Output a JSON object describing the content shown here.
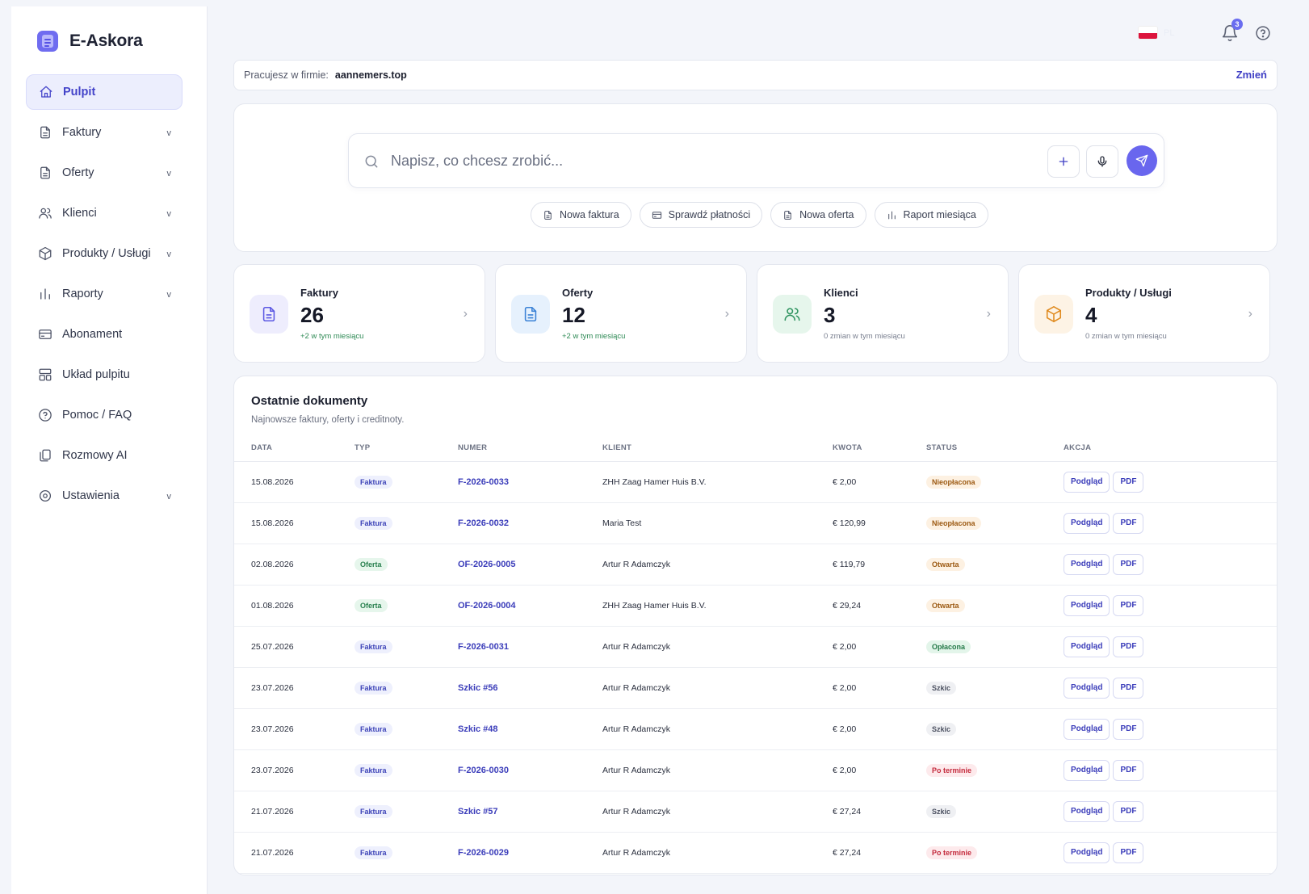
{
  "app": {
    "name": "E-Askora"
  },
  "sidebar": {
    "items": [
      {
        "label": "Pulpit",
        "icon": "home-icon",
        "active": true,
        "expandable": false
      },
      {
        "label": "Faktury",
        "icon": "document-icon",
        "expandable": true
      },
      {
        "label": "Oferty",
        "icon": "document-icon",
        "expandable": true
      },
      {
        "label": "Klienci",
        "icon": "users-icon",
        "expandable": true
      },
      {
        "label": "Produkty / Usługi",
        "icon": "box-icon",
        "expandable": true
      },
      {
        "label": "Raporty",
        "icon": "bar-chart-icon",
        "expandable": true
      },
      {
        "label": "Abonament",
        "icon": "credit-card-icon",
        "expandable": false
      },
      {
        "label": "Układ pulpitu",
        "icon": "layout-icon",
        "expandable": false
      },
      {
        "label": "Pomoc / FAQ",
        "icon": "help-circle-icon",
        "expandable": false
      },
      {
        "label": "Rozmowy AI",
        "icon": "copy-icon",
        "expandable": false
      },
      {
        "label": "Ustawienia",
        "icon": "settings-icon",
        "expandable": true
      }
    ],
    "chevron": "v"
  },
  "topbar": {
    "language": "PL",
    "notifications_count": "3",
    "flag_colors": {
      "top": "#ffffff",
      "bottom": "#dc143c"
    }
  },
  "company": {
    "label": "Pracujesz w firmie:",
    "name": "aannemers.top",
    "change_label": "Zmień"
  },
  "ai": {
    "placeholder": "Napisz, co chcesz zrobić...",
    "quick_actions": [
      {
        "label": "Nowa faktura",
        "icon": "document-icon"
      },
      {
        "label": "Sprawdź płatności",
        "icon": "credit-card-icon"
      },
      {
        "label": "Nowa oferta",
        "icon": "document-icon"
      },
      {
        "label": "Raport miesiąca",
        "icon": "bar-chart-icon"
      }
    ]
  },
  "stats": [
    {
      "title": "Faktury",
      "value": "26",
      "sub": "+2 w tym miesiącu",
      "positive": true,
      "icon": "document-icon",
      "bg": "#eeedfd",
      "color": "#5c59e3"
    },
    {
      "title": "Oferty",
      "value": "12",
      "sub": "+2 w tym miesiącu",
      "positive": true,
      "icon": "document-icon",
      "bg": "#e6f1fd",
      "color": "#3b82d6"
    },
    {
      "title": "Klienci",
      "value": "3",
      "sub": "0 zmian w tym miesiącu",
      "positive": false,
      "icon": "users-icon",
      "bg": "#e6f6ec",
      "color": "#2f9460"
    },
    {
      "title": "Produkty / Usługi",
      "value": "4",
      "sub": "0 zmian w tym miesiącu",
      "positive": false,
      "icon": "box-icon",
      "bg": "#fdf3e5",
      "color": "#e08a1e"
    }
  ],
  "documents": {
    "title": "Ostatnie dokumenty",
    "subtitle": "Najnowsze faktury, oferty i creditnoty.",
    "columns": [
      "DATA",
      "TYP",
      "NUMER",
      "KLIENT",
      "KWOTA",
      "STATUS",
      "AKCJA"
    ],
    "view_label": "Podgląd",
    "pdf_label": "PDF",
    "rows": [
      {
        "date": "15.08.2026",
        "type": "Faktura",
        "number": "F-2026-0033",
        "client": "ZHH Zaag Hamer Huis B.V.",
        "amount": "€ 2,00",
        "status": "Nieopłacona",
        "status_key": "nieoplacona"
      },
      {
        "date": "15.08.2026",
        "type": "Faktura",
        "number": "F-2026-0032",
        "client": "Maria Test",
        "amount": "€ 120,99",
        "status": "Nieopłacona",
        "status_key": "nieoplacona"
      },
      {
        "date": "02.08.2026",
        "type": "Oferta",
        "number": "OF-2026-0005",
        "client": "Artur R Adamczyk",
        "amount": "€ 119,79",
        "status": "Otwarta",
        "status_key": "otwarta"
      },
      {
        "date": "01.08.2026",
        "type": "Oferta",
        "number": "OF-2026-0004",
        "client": "ZHH Zaag Hamer Huis B.V.",
        "amount": "€ 29,24",
        "status": "Otwarta",
        "status_key": "otwarta"
      },
      {
        "date": "25.07.2026",
        "type": "Faktura",
        "number": "F-2026-0031",
        "client": "Artur R Adamczyk",
        "amount": "€ 2,00",
        "status": "Opłacona",
        "status_key": "oplacona"
      },
      {
        "date": "23.07.2026",
        "type": "Faktura",
        "number": "Szkic #56",
        "client": "Artur R Adamczyk",
        "amount": "€ 2,00",
        "status": "Szkic",
        "status_key": "szkic"
      },
      {
        "date": "23.07.2026",
        "type": "Faktura",
        "number": "Szkic #48",
        "client": "Artur R Adamczyk",
        "amount": "€ 2,00",
        "status": "Szkic",
        "status_key": "szkic"
      },
      {
        "date": "23.07.2026",
        "type": "Faktura",
        "number": "F-2026-0030",
        "client": "Artur R Adamczyk",
        "amount": "€ 2,00",
        "status": "Po terminie",
        "status_key": "poterminie"
      },
      {
        "date": "21.07.2026",
        "type": "Faktura",
        "number": "Szkic #57",
        "client": "Artur R Adamczyk",
        "amount": "€ 27,24",
        "status": "Szkic",
        "status_key": "szkic"
      },
      {
        "date": "21.07.2026",
        "type": "Faktura",
        "number": "F-2026-0029",
        "client": "Artur R Adamczyk",
        "amount": "€ 27,24",
        "status": "Po terminie",
        "status_key": "poterminie"
      }
    ]
  }
}
